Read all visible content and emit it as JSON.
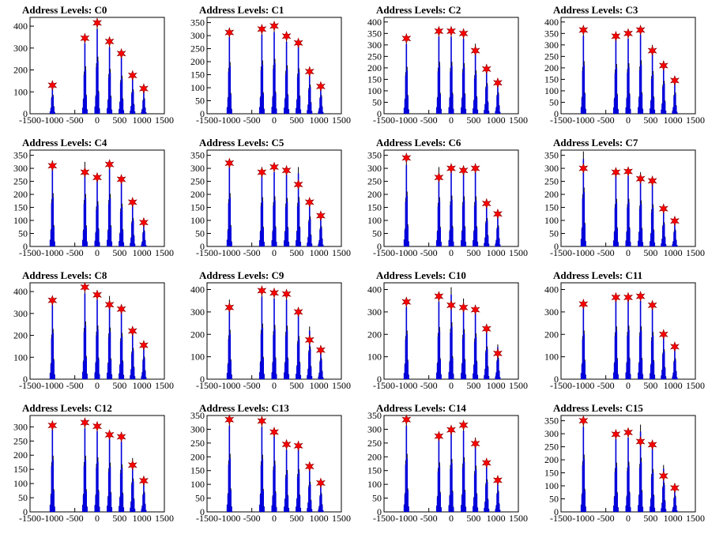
{
  "panel_title_prefix": "Address Levels: ",
  "colors": {
    "histogram": "#0000dd",
    "outline": "#000000",
    "marker": "#ff0000"
  },
  "chart_data": [
    {
      "type": "bar",
      "title": "Address Levels: C0",
      "xlim": [
        -1500,
        1500
      ],
      "xticks": [
        -1500,
        -1000,
        -500,
        0,
        500,
        1000,
        1500
      ],
      "ylim": [
        0,
        440
      ],
      "yticks": [
        0,
        100,
        200,
        300,
        400
      ],
      "peaks": [
        {
          "x": -1000,
          "y": 140,
          "star": 130
        },
        {
          "x": -275,
          "y": 350,
          "star": 345
        },
        {
          "x": 0,
          "y": 420,
          "star": 415
        },
        {
          "x": 275,
          "y": 330,
          "star": 330
        },
        {
          "x": 540,
          "y": 280,
          "star": 275
        },
        {
          "x": 790,
          "y": 180,
          "star": 175
        },
        {
          "x": 1040,
          "y": 115,
          "star": 115
        }
      ]
    },
    {
      "type": "bar",
      "title": "Address Levels: C1",
      "xlim": [
        -1500,
        1500
      ],
      "xticks": [
        -1500,
        -1000,
        -500,
        0,
        500,
        1000,
        1500
      ],
      "ylim": [
        0,
        370
      ],
      "yticks": [
        0,
        50,
        100,
        150,
        200,
        250,
        300,
        350
      ],
      "peaks": [
        {
          "x": -1000,
          "y": 320,
          "star": 312
        },
        {
          "x": -275,
          "y": 330,
          "star": 325
        },
        {
          "x": 0,
          "y": 340,
          "star": 337
        },
        {
          "x": 275,
          "y": 300,
          "star": 298
        },
        {
          "x": 540,
          "y": 280,
          "star": 272
        },
        {
          "x": 790,
          "y": 180,
          "star": 162
        },
        {
          "x": 1040,
          "y": 115,
          "star": 105
        }
      ]
    },
    {
      "type": "bar",
      "title": "Address Levels: C2",
      "xlim": [
        -1500,
        1500
      ],
      "xticks": [
        -1500,
        -1000,
        -500,
        0,
        500,
        1000,
        1500
      ],
      "ylim": [
        0,
        420
      ],
      "yticks": [
        0,
        50,
        100,
        150,
        200,
        250,
        300,
        350,
        400
      ],
      "peaks": [
        {
          "x": -1000,
          "y": 330,
          "star": 328
        },
        {
          "x": -275,
          "y": 365,
          "star": 360
        },
        {
          "x": 0,
          "y": 365,
          "star": 360
        },
        {
          "x": 275,
          "y": 355,
          "star": 350
        },
        {
          "x": 540,
          "y": 305,
          "star": 275
        },
        {
          "x": 790,
          "y": 215,
          "star": 195
        },
        {
          "x": 1040,
          "y": 150,
          "star": 135
        }
      ]
    },
    {
      "type": "bar",
      "title": "Address Levels: C3",
      "xlim": [
        -1500,
        1500
      ],
      "xticks": [
        -1500,
        -1000,
        -500,
        0,
        500,
        1000,
        1500
      ],
      "ylim": [
        0,
        420
      ],
      "yticks": [
        0,
        50,
        100,
        150,
        200,
        250,
        300,
        350,
        400
      ],
      "peaks": [
        {
          "x": -1000,
          "y": 370,
          "star": 365
        },
        {
          "x": -275,
          "y": 350,
          "star": 338
        },
        {
          "x": 0,
          "y": 355,
          "star": 350
        },
        {
          "x": 275,
          "y": 375,
          "star": 365
        },
        {
          "x": 540,
          "y": 300,
          "star": 275
        },
        {
          "x": 790,
          "y": 230,
          "star": 210
        },
        {
          "x": 1040,
          "y": 150,
          "star": 145
        }
      ]
    },
    {
      "type": "bar",
      "title": "Address Levels: C4",
      "xlim": [
        -1500,
        1500
      ],
      "xticks": [
        -1500,
        -1000,
        -500,
        0,
        500,
        1000,
        1500
      ],
      "ylim": [
        0,
        370
      ],
      "yticks": [
        0,
        50,
        100,
        150,
        200,
        250,
        300,
        350
      ],
      "peaks": [
        {
          "x": -1000,
          "y": 330,
          "star": 310
        },
        {
          "x": -275,
          "y": 325,
          "star": 285
        },
        {
          "x": 0,
          "y": 280,
          "star": 265
        },
        {
          "x": 275,
          "y": 325,
          "star": 315
        },
        {
          "x": 540,
          "y": 265,
          "star": 258
        },
        {
          "x": 790,
          "y": 175,
          "star": 170
        },
        {
          "x": 1040,
          "y": 100,
          "star": 92
        }
      ]
    },
    {
      "type": "bar",
      "title": "Address Levels: C5",
      "xlim": [
        -1500,
        1500
      ],
      "xticks": [
        -1500,
        -1000,
        -500,
        0,
        500,
        1000,
        1500
      ],
      "ylim": [
        0,
        370
      ],
      "yticks": [
        0,
        50,
        100,
        150,
        200,
        250,
        300,
        350
      ],
      "peaks": [
        {
          "x": -1000,
          "y": 330,
          "star": 320
        },
        {
          "x": -275,
          "y": 305,
          "star": 285
        },
        {
          "x": 0,
          "y": 310,
          "star": 305
        },
        {
          "x": 275,
          "y": 300,
          "star": 292
        },
        {
          "x": 540,
          "y": 305,
          "star": 238
        },
        {
          "x": 790,
          "y": 185,
          "star": 170
        },
        {
          "x": 1040,
          "y": 125,
          "star": 118
        }
      ]
    },
    {
      "type": "bar",
      "title": "Address Levels: C6",
      "xlim": [
        -1500,
        1500
      ],
      "xticks": [
        -1500,
        -1000,
        -500,
        0,
        500,
        1000,
        1500
      ],
      "ylim": [
        0,
        370
      ],
      "yticks": [
        0,
        50,
        100,
        150,
        200,
        250,
        300,
        350
      ],
      "peaks": [
        {
          "x": -1000,
          "y": 340,
          "star": 340
        },
        {
          "x": -275,
          "y": 305,
          "star": 265
        },
        {
          "x": 0,
          "y": 315,
          "star": 300
        },
        {
          "x": 275,
          "y": 310,
          "star": 292
        },
        {
          "x": 540,
          "y": 310,
          "star": 300
        },
        {
          "x": 790,
          "y": 175,
          "star": 165
        },
        {
          "x": 1040,
          "y": 130,
          "star": 125
        }
      ]
    },
    {
      "type": "bar",
      "title": "Address Levels: C7",
      "xlim": [
        -1500,
        1500
      ],
      "xticks": [
        -1500,
        -1000,
        -500,
        0,
        500,
        1000,
        1500
      ],
      "ylim": [
        0,
        370
      ],
      "yticks": [
        0,
        50,
        100,
        150,
        200,
        250,
        300,
        350
      ],
      "peaks": [
        {
          "x": -1000,
          "y": 365,
          "star": 300
        },
        {
          "x": -275,
          "y": 295,
          "star": 285
        },
        {
          "x": 0,
          "y": 295,
          "star": 288
        },
        {
          "x": 275,
          "y": 285,
          "star": 260
        },
        {
          "x": 540,
          "y": 260,
          "star": 252
        },
        {
          "x": 790,
          "y": 150,
          "star": 145
        },
        {
          "x": 1040,
          "y": 105,
          "star": 98
        }
      ]
    },
    {
      "type": "bar",
      "title": "Address Levels: C8",
      "xlim": [
        -1500,
        1500
      ],
      "xticks": [
        -1500,
        -1000,
        -500,
        0,
        500,
        1000,
        1500
      ],
      "ylim": [
        0,
        440
      ],
      "yticks": [
        0,
        100,
        200,
        300,
        400
      ],
      "peaks": [
        {
          "x": -1000,
          "y": 370,
          "star": 360
        },
        {
          "x": -275,
          "y": 425,
          "star": 420
        },
        {
          "x": 0,
          "y": 395,
          "star": 385
        },
        {
          "x": 275,
          "y": 380,
          "star": 340
        },
        {
          "x": 540,
          "y": 340,
          "star": 320
        },
        {
          "x": 790,
          "y": 230,
          "star": 220
        },
        {
          "x": 1040,
          "y": 165,
          "star": 155
        }
      ]
    },
    {
      "type": "bar",
      "title": "Address Levels: C9",
      "xlim": [
        -1500,
        1500
      ],
      "xticks": [
        -1500,
        -1000,
        -500,
        0,
        500,
        1000,
        1500
      ],
      "ylim": [
        0,
        430
      ],
      "yticks": [
        0,
        100,
        200,
        300,
        400
      ],
      "peaks": [
        {
          "x": -1000,
          "y": 355,
          "star": 320
        },
        {
          "x": -275,
          "y": 400,
          "star": 395
        },
        {
          "x": 0,
          "y": 390,
          "star": 385
        },
        {
          "x": 275,
          "y": 385,
          "star": 380
        },
        {
          "x": 540,
          "y": 310,
          "star": 300
        },
        {
          "x": 790,
          "y": 235,
          "star": 175
        },
        {
          "x": 1040,
          "y": 150,
          "star": 130
        }
      ]
    },
    {
      "type": "bar",
      "title": "Address Levels: C10",
      "xlim": [
        -1500,
        1500
      ],
      "xticks": [
        -1500,
        -1000,
        -500,
        0,
        500,
        1000,
        1500
      ],
      "ylim": [
        0,
        430
      ],
      "yticks": [
        0,
        100,
        200,
        300,
        400
      ],
      "peaks": [
        {
          "x": -1000,
          "y": 350,
          "star": 345
        },
        {
          "x": -275,
          "y": 375,
          "star": 370
        },
        {
          "x": 0,
          "y": 410,
          "star": 330
        },
        {
          "x": 275,
          "y": 360,
          "star": 320
        },
        {
          "x": 540,
          "y": 330,
          "star": 310
        },
        {
          "x": 790,
          "y": 235,
          "star": 225
        },
        {
          "x": 1040,
          "y": 155,
          "star": 115
        }
      ]
    },
    {
      "type": "bar",
      "title": "Address Levels: C11",
      "xlim": [
        -1500,
        1500
      ],
      "xticks": [
        -1500,
        -1000,
        -500,
        0,
        500,
        1000,
        1500
      ],
      "ylim": [
        0,
        430
      ],
      "yticks": [
        0,
        100,
        200,
        300,
        400
      ],
      "peaks": [
        {
          "x": -1000,
          "y": 350,
          "star": 335
        },
        {
          "x": -275,
          "y": 380,
          "star": 365
        },
        {
          "x": 0,
          "y": 385,
          "star": 365
        },
        {
          "x": 275,
          "y": 380,
          "star": 370
        },
        {
          "x": 540,
          "y": 340,
          "star": 330
        },
        {
          "x": 790,
          "y": 215,
          "star": 200
        },
        {
          "x": 1040,
          "y": 150,
          "star": 145
        }
      ]
    },
    {
      "type": "bar",
      "title": "Address Levels: C12",
      "xlim": [
        -1500,
        1500
      ],
      "xticks": [
        -1500,
        -1000,
        -500,
        0,
        500,
        1000,
        1500
      ],
      "ylim": [
        0,
        340
      ],
      "yticks": [
        0,
        50,
        100,
        150,
        200,
        250,
        300
      ],
      "peaks": [
        {
          "x": -1000,
          "y": 320,
          "star": 305
        },
        {
          "x": -275,
          "y": 320,
          "star": 315
        },
        {
          "x": 0,
          "y": 310,
          "star": 302
        },
        {
          "x": 275,
          "y": 280,
          "star": 272
        },
        {
          "x": 540,
          "y": 270,
          "star": 265
        },
        {
          "x": 790,
          "y": 190,
          "star": 165
        },
        {
          "x": 1040,
          "y": 115,
          "star": 110
        }
      ]
    },
    {
      "type": "bar",
      "title": "Address Levels: C13",
      "xlim": [
        -1500,
        1500
      ],
      "xticks": [
        -1500,
        -1000,
        -500,
        0,
        500,
        1000,
        1500
      ],
      "ylim": [
        0,
        350
      ],
      "yticks": [
        0,
        50,
        100,
        150,
        200,
        250,
        300,
        350
      ],
      "peaks": [
        {
          "x": -1000,
          "y": 340,
          "star": 335
        },
        {
          "x": -275,
          "y": 335,
          "star": 330
        },
        {
          "x": 0,
          "y": 300,
          "star": 290
        },
        {
          "x": 275,
          "y": 245,
          "star": 245
        },
        {
          "x": 540,
          "y": 250,
          "star": 240
        },
        {
          "x": 790,
          "y": 175,
          "star": 165
        },
        {
          "x": 1040,
          "y": 110,
          "star": 105
        }
      ]
    },
    {
      "type": "bar",
      "title": "Address Levels: C14",
      "xlim": [
        -1500,
        1500
      ],
      "xticks": [
        -1500,
        -1000,
        -500,
        0,
        500,
        1000,
        1500
      ],
      "ylim": [
        0,
        350
      ],
      "yticks": [
        0,
        50,
        100,
        150,
        200,
        250,
        300,
        350
      ],
      "peaks": [
        {
          "x": -1000,
          "y": 340,
          "star": 335
        },
        {
          "x": -275,
          "y": 290,
          "star": 275
        },
        {
          "x": 0,
          "y": 310,
          "star": 298
        },
        {
          "x": 275,
          "y": 320,
          "star": 315
        },
        {
          "x": 540,
          "y": 270,
          "star": 248
        },
        {
          "x": 790,
          "y": 190,
          "star": 178
        },
        {
          "x": 1040,
          "y": 125,
          "star": 115
        }
      ]
    },
    {
      "type": "bar",
      "title": "Address Levels: C15",
      "xlim": [
        -1500,
        1500
      ],
      "xticks": [
        -1500,
        -1000,
        -500,
        0,
        500,
        1000,
        1500
      ],
      "ylim": [
        0,
        370
      ],
      "yticks": [
        0,
        50,
        100,
        150,
        200,
        250,
        300,
        350
      ],
      "peaks": [
        {
          "x": -1000,
          "y": 355,
          "star": 350
        },
        {
          "x": -275,
          "y": 305,
          "star": 298
        },
        {
          "x": 0,
          "y": 310,
          "star": 305
        },
        {
          "x": 275,
          "y": 335,
          "star": 270
        },
        {
          "x": 540,
          "y": 265,
          "star": 258
        },
        {
          "x": 790,
          "y": 180,
          "star": 138
        },
        {
          "x": 1040,
          "y": 100,
          "star": 92
        }
      ]
    }
  ]
}
